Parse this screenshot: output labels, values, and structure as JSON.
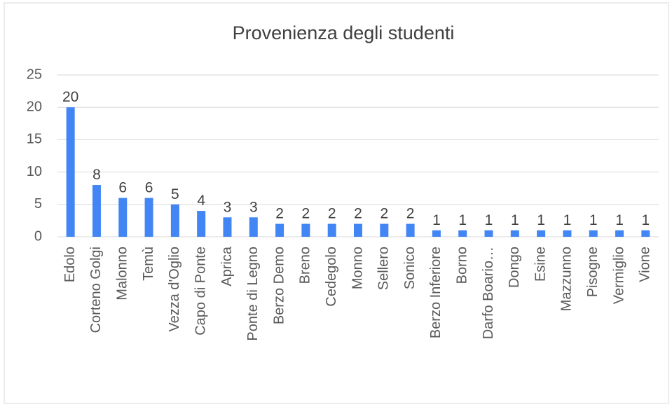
{
  "chart_data": {
    "type": "bar",
    "title": "Provenienza degli studenti",
    "categories": [
      "Edolo",
      "Corteno Golgi",
      "Malonno",
      "Temù",
      "Vezza d'Oglio",
      "Capo di Ponte",
      "Aprica",
      "Ponte di Legno",
      "Berzo Demo",
      "Breno",
      "Cedegolo",
      "Monno",
      "Sellero",
      "Sonico",
      "Berzo Inferiore",
      "Borno",
      "Darfo Boario…",
      "Dongo",
      "Esine",
      "Mazzunno",
      "Pisogne",
      "Vermiglio",
      "Vione"
    ],
    "values": [
      20,
      8,
      6,
      6,
      5,
      4,
      3,
      3,
      2,
      2,
      2,
      2,
      2,
      2,
      1,
      1,
      1,
      1,
      1,
      1,
      1,
      1,
      1
    ],
    "color": "#4285f4",
    "ylim": [
      0,
      25
    ],
    "yticks": [
      0,
      5,
      10,
      15,
      20,
      25
    ],
    "grid": true
  }
}
